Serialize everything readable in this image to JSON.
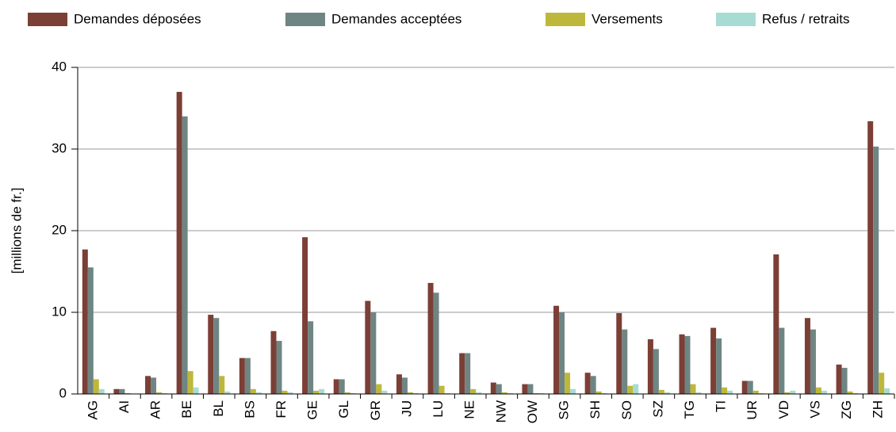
{
  "chart_data": {
    "type": "bar",
    "y_label": "[millions de fr.]",
    "categories": [
      "AG",
      "AI",
      "AR",
      "BE",
      "BL",
      "BS",
      "FR",
      "GE",
      "GL",
      "GR",
      "JU",
      "LU",
      "NE",
      "NW",
      "OW",
      "SG",
      "SH",
      "SO",
      "SZ",
      "TG",
      "TI",
      "UR",
      "VD",
      "VS",
      "ZG",
      "ZH"
    ],
    "series": [
      {
        "name": "Demandes déposées",
        "color": "#7b3f36",
        "values": [
          17.7,
          0.6,
          2.2,
          37,
          9.7,
          4.4,
          7.7,
          19.2,
          1.8,
          11.4,
          2.4,
          13.6,
          5.0,
          1.4,
          1.2,
          10.8,
          2.6,
          9.9,
          6.7,
          7.3,
          8.1,
          1.6,
          17.1,
          9.3,
          3.6,
          33.4
        ]
      },
      {
        "name": "Demandes acceptées",
        "color": "#6f8583",
        "values": [
          15.5,
          0.6,
          2.0,
          34,
          9.3,
          4.4,
          6.5,
          8.9,
          1.8,
          10.0,
          2.0,
          12.4,
          5.0,
          1.2,
          1.2,
          10.0,
          2.2,
          7.9,
          5.5,
          7.1,
          6.8,
          1.6,
          8.1,
          7.9,
          3.2,
          30.3
        ]
      },
      {
        "name": "Versements",
        "color": "#bdb83c",
        "values": [
          1.8,
          0.1,
          0.2,
          2.8,
          2.2,
          0.6,
          0.4,
          0.4,
          0.2,
          1.2,
          0.2,
          1.0,
          0.6,
          0.2,
          0.1,
          2.6,
          0.3,
          1.0,
          0.5,
          1.2,
          0.8,
          0.4,
          0.2,
          0.8,
          0.3,
          2.6
        ]
      },
      {
        "name": "Refus / retraits",
        "color": "#a7dcd3",
        "values": [
          0.6,
          0.05,
          0.1,
          0.8,
          0.3,
          0.2,
          0.2,
          0.6,
          0.1,
          0.4,
          0.1,
          0.1,
          0.2,
          0.1,
          0.1,
          0.6,
          0.1,
          1.2,
          0.2,
          0.2,
          0.4,
          0.1,
          0.4,
          0.4,
          0.1,
          0.7
        ]
      }
    ],
    "ylim": [
      0,
      40
    ],
    "yticks": [
      0,
      10,
      20,
      30,
      40
    ],
    "grid": true,
    "legend": "top"
  }
}
